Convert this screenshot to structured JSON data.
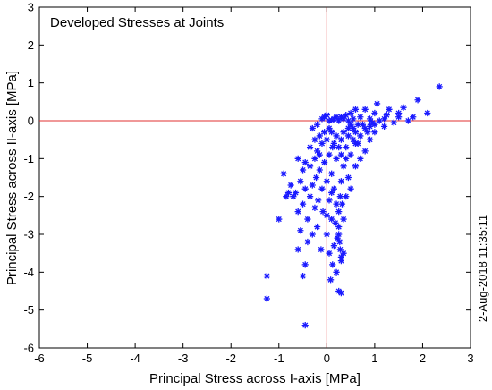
{
  "chart_data": {
    "type": "scatter",
    "title": "Developed Stresses at Joints",
    "xlabel": "Principal Stress across I-axis [MPa]",
    "ylabel": "Principal Stress across II-axis [MPa]",
    "xlim": [
      -6,
      3
    ],
    "ylim": [
      -6,
      3
    ],
    "xticks": [
      -6,
      -5,
      -4,
      -3,
      -2,
      -1,
      0,
      1,
      2,
      3
    ],
    "yticks": [
      -6,
      -5,
      -4,
      -3,
      -2,
      -1,
      0,
      1,
      2,
      3
    ],
    "reference_lines": {
      "x": 0,
      "y": 0,
      "color": "#e03030"
    },
    "marker": "asterisk",
    "marker_color": "#1a1aff",
    "grid": false,
    "points": [
      [
        2.35,
        0.9
      ],
      [
        1.9,
        0.55
      ],
      [
        2.1,
        0.2
      ],
      [
        1.8,
        0.1
      ],
      [
        1.6,
        0.35
      ],
      [
        1.5,
        0.1
      ],
      [
        1.3,
        0.3
      ],
      [
        1.2,
        0.05
      ],
      [
        1.0,
        0.2
      ],
      [
        1.05,
        0.45
      ],
      [
        1.1,
        0.0
      ],
      [
        0.95,
        -0.05
      ],
      [
        0.8,
        0.3
      ],
      [
        0.7,
        0.1
      ],
      [
        0.6,
        0.3
      ],
      [
        0.55,
        0.05
      ],
      [
        0.5,
        0.2
      ],
      [
        0.45,
        0.0
      ],
      [
        0.4,
        0.15
      ],
      [
        0.35,
        0.05
      ],
      [
        0.3,
        0.1
      ],
      [
        0.25,
        0.0
      ],
      [
        0.2,
        0.1
      ],
      [
        0.15,
        0.05
      ],
      [
        0.1,
        0.02
      ],
      [
        0.05,
        0.0
      ],
      [
        1.7,
        0.0
      ],
      [
        1.4,
        -0.05
      ],
      [
        0.9,
        0.05
      ],
      [
        0.75,
        -0.1
      ],
      [
        1.0,
        -0.3
      ],
      [
        0.9,
        -0.5
      ],
      [
        0.8,
        -0.8
      ],
      [
        0.7,
        -1.0
      ],
      [
        0.65,
        -0.6
      ],
      [
        0.6,
        -0.3
      ],
      [
        0.55,
        -0.5
      ],
      [
        0.5,
        -0.9
      ],
      [
        0.45,
        -0.4
      ],
      [
        0.4,
        -0.7
      ],
      [
        0.35,
        -1.2
      ],
      [
        0.3,
        -0.5
      ],
      [
        0.3,
        -1.6
      ],
      [
        0.28,
        -2.0
      ],
      [
        0.25,
        -2.4
      ],
      [
        0.25,
        -2.8
      ],
      [
        0.27,
        -3.2
      ],
      [
        0.3,
        -3.6
      ],
      [
        0.25,
        -3.0
      ],
      [
        0.2,
        -2.2
      ],
      [
        0.2,
        -1.0
      ],
      [
        0.15,
        -1.8
      ],
      [
        0.15,
        -3.3
      ],
      [
        0.1,
        -2.6
      ],
      [
        0.1,
        -1.4
      ],
      [
        0.05,
        -0.9
      ],
      [
        0.05,
        -2.1
      ],
      [
        0.0,
        -0.5
      ],
      [
        0.0,
        -1.6
      ],
      [
        0.0,
        -3.0
      ],
      [
        0.25,
        -4.5
      ],
      [
        0.3,
        -4.55
      ],
      [
        0.35,
        -3.5
      ],
      [
        0.4,
        -2.0
      ],
      [
        0.45,
        -1.5
      ],
      [
        0.5,
        -1.8
      ],
      [
        0.6,
        -1.2
      ],
      [
        0.3,
        -3.7
      ],
      [
        0.2,
        -4.0
      ],
      [
        0.35,
        -2.6
      ],
      [
        0.12,
        -3.8
      ],
      [
        0.08,
        -4.2
      ],
      [
        -0.05,
        -0.3
      ],
      [
        -0.05,
        -1.1
      ],
      [
        -0.08,
        -2.4
      ],
      [
        -0.1,
        -0.6
      ],
      [
        -0.1,
        -1.8
      ],
      [
        -0.12,
        -3.4
      ],
      [
        -0.15,
        -0.4
      ],
      [
        -0.15,
        -1.3
      ],
      [
        -0.18,
        -2.1
      ],
      [
        -0.2,
        -0.8
      ],
      [
        -0.2,
        -2.8
      ],
      [
        -0.22,
        -1.5
      ],
      [
        -0.25,
        -1.0
      ],
      [
        -0.25,
        -2.3
      ],
      [
        -0.3,
        -1.7
      ],
      [
        -0.3,
        -3.0
      ],
      [
        -0.35,
        -1.2
      ],
      [
        -0.35,
        -2.0
      ],
      [
        -0.4,
        -2.6
      ],
      [
        -0.4,
        -3.2
      ],
      [
        -0.45,
        -1.8
      ],
      [
        -0.5,
        -2.2
      ],
      [
        -0.55,
        -1.6
      ],
      [
        -0.55,
        -2.9
      ],
      [
        -0.6,
        -2.4
      ],
      [
        -0.6,
        -3.4
      ],
      [
        -0.65,
        -1.9
      ],
      [
        -0.7,
        -2.0
      ],
      [
        -0.75,
        -1.7
      ],
      [
        -0.8,
        -1.9
      ],
      [
        -0.85,
        -2.0
      ],
      [
        -0.9,
        -1.4
      ],
      [
        -0.45,
        -3.8
      ],
      [
        -0.5,
        -4.1
      ],
      [
        -1.0,
        -2.6
      ],
      [
        -1.25,
        -4.1
      ],
      [
        -1.25,
        -4.7
      ],
      [
        -0.45,
        -5.4
      ],
      [
        -0.3,
        -0.2
      ],
      [
        -0.2,
        -0.1
      ],
      [
        -0.1,
        0.05
      ],
      [
        -0.05,
        0.1
      ],
      [
        0.0,
        0.15
      ],
      [
        0.05,
        -0.2
      ],
      [
        0.1,
        -0.3
      ],
      [
        0.15,
        -0.6
      ],
      [
        0.2,
        -0.4
      ],
      [
        0.25,
        -0.7
      ],
      [
        0.3,
        -0.9
      ],
      [
        0.35,
        -0.3
      ],
      [
        0.4,
        -1.0
      ],
      [
        0.45,
        -0.2
      ],
      [
        0.5,
        -0.1
      ],
      [
        0.55,
        -0.2
      ],
      [
        0.6,
        -0.6
      ],
      [
        0.65,
        -0.1
      ],
      [
        0.7,
        -0.4
      ],
      [
        0.8,
        -0.2
      ],
      [
        0.85,
        -0.3
      ],
      [
        0.9,
        -0.15
      ],
      [
        1.0,
        -0.1
      ],
      [
        1.2,
        -0.15
      ],
      [
        1.25,
        0.15
      ],
      [
        1.5,
        0.2
      ],
      [
        -0.15,
        -0.9
      ],
      [
        -0.25,
        -0.5
      ],
      [
        -0.35,
        -0.7
      ],
      [
        -0.45,
        -1.1
      ],
      [
        -0.5,
        -1.3
      ],
      [
        -0.6,
        -1.0
      ],
      [
        0.0,
        -2.5
      ],
      [
        0.05,
        -3.5
      ],
      [
        0.1,
        -1.9
      ],
      [
        0.18,
        -2.7
      ],
      [
        0.22,
        -3.1
      ],
      [
        0.28,
        -3.4
      ],
      [
        0.32,
        -2.2
      ],
      [
        0.12,
        -0.7
      ]
    ],
    "timestamp": "2-Aug-2018 11:35:11"
  }
}
